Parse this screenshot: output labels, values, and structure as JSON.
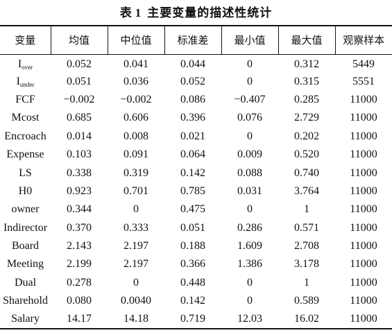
{
  "caption": {
    "prefix": "表",
    "number": "1",
    "title": "主要变量的描述性统计"
  },
  "columns": [
    "变量",
    "均值",
    "中位值",
    "标准差",
    "最小值",
    "最大值",
    "观察样本"
  ],
  "rows": [
    {
      "var": "I",
      "sub": "over",
      "values": [
        "0.052",
        "0.041",
        "0.044",
        "0",
        "0.312",
        "5449"
      ]
    },
    {
      "var": "I",
      "sub": "under",
      "values": [
        "0.051",
        "0.036",
        "0.052",
        "0",
        "0.315",
        "5551"
      ]
    },
    {
      "var": "FCF",
      "sub": "",
      "values": [
        "−0.002",
        "−0.002",
        "0.086",
        "−0.407",
        "0.285",
        "11000"
      ]
    },
    {
      "var": "Mcost",
      "sub": "",
      "values": [
        "0.685",
        "0.606",
        "0.396",
        "0.076",
        "2.729",
        "11000"
      ]
    },
    {
      "var": "Encroach",
      "sub": "",
      "values": [
        "0.014",
        "0.008",
        "0.021",
        "0",
        "0.202",
        "11000"
      ]
    },
    {
      "var": "Expense",
      "sub": "",
      "values": [
        "0.103",
        "0.091",
        "0.064",
        "0.009",
        "0.520",
        "11000"
      ]
    },
    {
      "var": "LS",
      "sub": "",
      "values": [
        "0.338",
        "0.319",
        "0.142",
        "0.088",
        "0.740",
        "11000"
      ]
    },
    {
      "var": "H0",
      "sub": "",
      "values": [
        "0.923",
        "0.701",
        "0.785",
        "0.031",
        "3.764",
        "11000"
      ]
    },
    {
      "var": "owner",
      "sub": "",
      "values": [
        "0.344",
        "0",
        "0.475",
        "0",
        "1",
        "11000"
      ]
    },
    {
      "var": "Indirector",
      "sub": "",
      "values": [
        "0.370",
        "0.333",
        "0.051",
        "0.286",
        "0.571",
        "11000"
      ]
    },
    {
      "var": "Board",
      "sub": "",
      "values": [
        "2.143",
        "2.197",
        "0.188",
        "1.609",
        "2.708",
        "11000"
      ]
    },
    {
      "var": "Meeting",
      "sub": "",
      "values": [
        "2.199",
        "2.197",
        "0.366",
        "1.386",
        "3.178",
        "11000"
      ]
    },
    {
      "var": "Dual",
      "sub": "",
      "values": [
        "0.278",
        "0",
        "0.448",
        "0",
        "1",
        "11000"
      ]
    },
    {
      "var": "Sharehold",
      "sub": "",
      "values": [
        "0.080",
        "0.0040",
        "0.142",
        "0",
        "0.589",
        "11000"
      ]
    },
    {
      "var": "Salary",
      "sub": "",
      "values": [
        "14.17",
        "14.18",
        "0.719",
        "12.03",
        "16.02",
        "11000"
      ]
    }
  ]
}
